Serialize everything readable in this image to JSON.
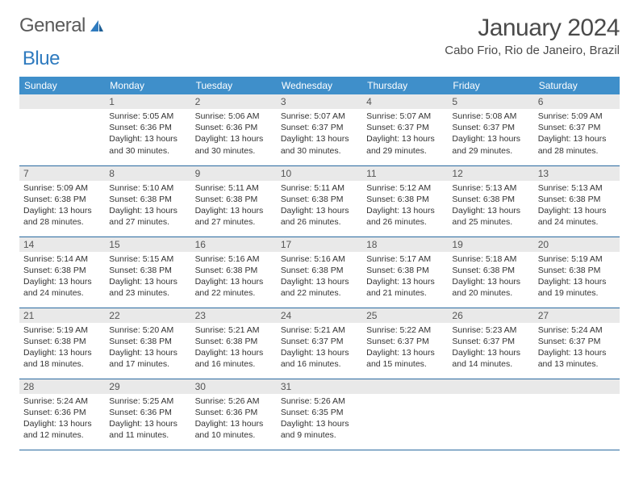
{
  "brand": {
    "part1": "General",
    "part2": "Blue"
  },
  "title": "January 2024",
  "location": "Cabo Frio, Rio de Janeiro, Brazil",
  "colors": {
    "header_bg": "#3f8fca",
    "header_text": "#ffffff",
    "daynum_bg": "#e9e9e9",
    "row_border": "#2a6aa0",
    "logo_gray": "#5a5a5a",
    "logo_blue": "#2f7bbf"
  },
  "weekdays": [
    "Sunday",
    "Monday",
    "Tuesday",
    "Wednesday",
    "Thursday",
    "Friday",
    "Saturday"
  ],
  "weeks": [
    [
      {
        "blank": true
      },
      {
        "num": "1",
        "sunrise": "Sunrise: 5:05 AM",
        "sunset": "Sunset: 6:36 PM",
        "daylight": "Daylight: 13 hours and 30 minutes."
      },
      {
        "num": "2",
        "sunrise": "Sunrise: 5:06 AM",
        "sunset": "Sunset: 6:36 PM",
        "daylight": "Daylight: 13 hours and 30 minutes."
      },
      {
        "num": "3",
        "sunrise": "Sunrise: 5:07 AM",
        "sunset": "Sunset: 6:37 PM",
        "daylight": "Daylight: 13 hours and 30 minutes."
      },
      {
        "num": "4",
        "sunrise": "Sunrise: 5:07 AM",
        "sunset": "Sunset: 6:37 PM",
        "daylight": "Daylight: 13 hours and 29 minutes."
      },
      {
        "num": "5",
        "sunrise": "Sunrise: 5:08 AM",
        "sunset": "Sunset: 6:37 PM",
        "daylight": "Daylight: 13 hours and 29 minutes."
      },
      {
        "num": "6",
        "sunrise": "Sunrise: 5:09 AM",
        "sunset": "Sunset: 6:37 PM",
        "daylight": "Daylight: 13 hours and 28 minutes."
      }
    ],
    [
      {
        "num": "7",
        "sunrise": "Sunrise: 5:09 AM",
        "sunset": "Sunset: 6:38 PM",
        "daylight": "Daylight: 13 hours and 28 minutes."
      },
      {
        "num": "8",
        "sunrise": "Sunrise: 5:10 AM",
        "sunset": "Sunset: 6:38 PM",
        "daylight": "Daylight: 13 hours and 27 minutes."
      },
      {
        "num": "9",
        "sunrise": "Sunrise: 5:11 AM",
        "sunset": "Sunset: 6:38 PM",
        "daylight": "Daylight: 13 hours and 27 minutes."
      },
      {
        "num": "10",
        "sunrise": "Sunrise: 5:11 AM",
        "sunset": "Sunset: 6:38 PM",
        "daylight": "Daylight: 13 hours and 26 minutes."
      },
      {
        "num": "11",
        "sunrise": "Sunrise: 5:12 AM",
        "sunset": "Sunset: 6:38 PM",
        "daylight": "Daylight: 13 hours and 26 minutes."
      },
      {
        "num": "12",
        "sunrise": "Sunrise: 5:13 AM",
        "sunset": "Sunset: 6:38 PM",
        "daylight": "Daylight: 13 hours and 25 minutes."
      },
      {
        "num": "13",
        "sunrise": "Sunrise: 5:13 AM",
        "sunset": "Sunset: 6:38 PM",
        "daylight": "Daylight: 13 hours and 24 minutes."
      }
    ],
    [
      {
        "num": "14",
        "sunrise": "Sunrise: 5:14 AM",
        "sunset": "Sunset: 6:38 PM",
        "daylight": "Daylight: 13 hours and 24 minutes."
      },
      {
        "num": "15",
        "sunrise": "Sunrise: 5:15 AM",
        "sunset": "Sunset: 6:38 PM",
        "daylight": "Daylight: 13 hours and 23 minutes."
      },
      {
        "num": "16",
        "sunrise": "Sunrise: 5:16 AM",
        "sunset": "Sunset: 6:38 PM",
        "daylight": "Daylight: 13 hours and 22 minutes."
      },
      {
        "num": "17",
        "sunrise": "Sunrise: 5:16 AM",
        "sunset": "Sunset: 6:38 PM",
        "daylight": "Daylight: 13 hours and 22 minutes."
      },
      {
        "num": "18",
        "sunrise": "Sunrise: 5:17 AM",
        "sunset": "Sunset: 6:38 PM",
        "daylight": "Daylight: 13 hours and 21 minutes."
      },
      {
        "num": "19",
        "sunrise": "Sunrise: 5:18 AM",
        "sunset": "Sunset: 6:38 PM",
        "daylight": "Daylight: 13 hours and 20 minutes."
      },
      {
        "num": "20",
        "sunrise": "Sunrise: 5:19 AM",
        "sunset": "Sunset: 6:38 PM",
        "daylight": "Daylight: 13 hours and 19 minutes."
      }
    ],
    [
      {
        "num": "21",
        "sunrise": "Sunrise: 5:19 AM",
        "sunset": "Sunset: 6:38 PM",
        "daylight": "Daylight: 13 hours and 18 minutes."
      },
      {
        "num": "22",
        "sunrise": "Sunrise: 5:20 AM",
        "sunset": "Sunset: 6:38 PM",
        "daylight": "Daylight: 13 hours and 17 minutes."
      },
      {
        "num": "23",
        "sunrise": "Sunrise: 5:21 AM",
        "sunset": "Sunset: 6:38 PM",
        "daylight": "Daylight: 13 hours and 16 minutes."
      },
      {
        "num": "24",
        "sunrise": "Sunrise: 5:21 AM",
        "sunset": "Sunset: 6:37 PM",
        "daylight": "Daylight: 13 hours and 16 minutes."
      },
      {
        "num": "25",
        "sunrise": "Sunrise: 5:22 AM",
        "sunset": "Sunset: 6:37 PM",
        "daylight": "Daylight: 13 hours and 15 minutes."
      },
      {
        "num": "26",
        "sunrise": "Sunrise: 5:23 AM",
        "sunset": "Sunset: 6:37 PM",
        "daylight": "Daylight: 13 hours and 14 minutes."
      },
      {
        "num": "27",
        "sunrise": "Sunrise: 5:24 AM",
        "sunset": "Sunset: 6:37 PM",
        "daylight": "Daylight: 13 hours and 13 minutes."
      }
    ],
    [
      {
        "num": "28",
        "sunrise": "Sunrise: 5:24 AM",
        "sunset": "Sunset: 6:36 PM",
        "daylight": "Daylight: 13 hours and 12 minutes."
      },
      {
        "num": "29",
        "sunrise": "Sunrise: 5:25 AM",
        "sunset": "Sunset: 6:36 PM",
        "daylight": "Daylight: 13 hours and 11 minutes."
      },
      {
        "num": "30",
        "sunrise": "Sunrise: 5:26 AM",
        "sunset": "Sunset: 6:36 PM",
        "daylight": "Daylight: 13 hours and 10 minutes."
      },
      {
        "num": "31",
        "sunrise": "Sunrise: 5:26 AM",
        "sunset": "Sunset: 6:35 PM",
        "daylight": "Daylight: 13 hours and 9 minutes."
      },
      {
        "blank": true
      },
      {
        "blank": true
      },
      {
        "blank": true
      }
    ]
  ]
}
